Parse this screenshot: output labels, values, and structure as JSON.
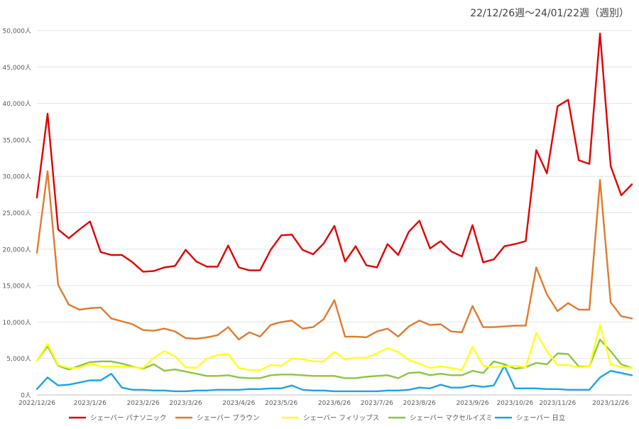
{
  "chart_data": {
    "type": "line",
    "title": "22/12/26週〜24/01/22週（週別）",
    "xlabel": "",
    "ylabel": "",
    "ylim": [
      0,
      50000
    ],
    "yticks": [
      0,
      5000,
      10000,
      15000,
      20000,
      25000,
      30000,
      35000,
      40000,
      45000,
      50000
    ],
    "ytick_labels": [
      "0人",
      "5,000人",
      "10,000人",
      "15,000人",
      "20,000人",
      "25,000人",
      "30,000人",
      "35,000人",
      "40,000人",
      "45,000人",
      "50,000人"
    ],
    "xtick_labels": [
      {
        "index": 0,
        "label": "2022/12/26"
      },
      {
        "index": 5,
        "label": "2023/1/26"
      },
      {
        "index": 10,
        "label": "2023/2/26"
      },
      {
        "index": 14,
        "label": "2023/3/26"
      },
      {
        "index": 19,
        "label": "2023/4/26"
      },
      {
        "index": 23,
        "label": "2023/5/26"
      },
      {
        "index": 28,
        "label": "2023/6/26"
      },
      {
        "index": 32,
        "label": "2023/7/26"
      },
      {
        "index": 36,
        "label": "2023/8/26"
      },
      {
        "index": 41,
        "label": "2023/9/26"
      },
      {
        "index": 45,
        "label": "2023/10/26"
      },
      {
        "index": 49,
        "label": "2023/11/26"
      },
      {
        "index": 54,
        "label": "2023/12/26"
      }
    ],
    "grid": true,
    "legend_position": "bottom",
    "series": [
      {
        "name": "シェーバー パナソニック",
        "color": "#e00000",
        "values": [
          27100,
          38600,
          22700,
          21500,
          22700,
          23800,
          19600,
          19200,
          19200,
          18200,
          16900,
          17000,
          17500,
          17700,
          19900,
          18300,
          17600,
          17600,
          20500,
          17500,
          17100,
          17100,
          19900,
          21900,
          22000,
          19900,
          19300,
          20800,
          23200,
          18300,
          20400,
          17800,
          17500,
          20700,
          19200,
          22400,
          23900,
          20100,
          21100,
          19700,
          19000,
          23300,
          18200,
          18600,
          20400,
          20700,
          21100,
          33600,
          30400,
          39600,
          40500,
          32200,
          31700,
          49600,
          31400,
          27400,
          28900
        ]
      },
      {
        "name": "シェーバー ブラウン",
        "color": "#e07a2e",
        "values": [
          19500,
          30700,
          15100,
          12400,
          11700,
          11900,
          12000,
          10500,
          10100,
          9700,
          8900,
          8800,
          9100,
          8700,
          7800,
          7700,
          7900,
          8200,
          9300,
          7600,
          8600,
          8000,
          9600,
          10000,
          10200,
          9100,
          9300,
          10400,
          13000,
          8000,
          8000,
          7900,
          8700,
          9100,
          8000,
          9400,
          10200,
          9600,
          9700,
          8700,
          8600,
          12200,
          9300,
          9300,
          9400,
          9500,
          9500,
          17500,
          13800,
          11500,
          12600,
          11700,
          11700,
          29500,
          12700,
          10800,
          10500
        ]
      },
      {
        "name": "シェーバー フィリップス",
        "color": "#ffff1a",
        "values": [
          4700,
          7000,
          4100,
          3700,
          3700,
          4300,
          3900,
          3900,
          3900,
          3800,
          3700,
          5100,
          6000,
          5300,
          3800,
          3700,
          5000,
          5500,
          5600,
          3700,
          3400,
          3400,
          4100,
          4000,
          5000,
          4900,
          4600,
          4600,
          5900,
          4900,
          5100,
          5100,
          5700,
          6400,
          5900,
          4800,
          4300,
          3700,
          3900,
          3700,
          3400,
          6600,
          4000,
          3800,
          3900,
          4000,
          3800,
          8500,
          6000,
          4100,
          4100,
          3800,
          3900,
          9600,
          4200,
          3800,
          3700
        ]
      },
      {
        "name": "シェーバー マクセルイズミ",
        "color": "#8cc63f",
        "values": [
          4700,
          6700,
          4000,
          3500,
          4000,
          4500,
          4600,
          4600,
          4300,
          3900,
          3600,
          4200,
          3300,
          3500,
          3200,
          2900,
          2600,
          2600,
          2700,
          2400,
          2300,
          2300,
          2700,
          2800,
          2800,
          2700,
          2600,
          2600,
          2600,
          2300,
          2300,
          2500,
          2600,
          2700,
          2300,
          3000,
          3100,
          2700,
          2900,
          2700,
          2700,
          3300,
          3000,
          4600,
          4200,
          3600,
          3800,
          4400,
          4200,
          5700,
          5600,
          3900,
          3900,
          7600,
          6000,
          4200,
          3700
        ]
      },
      {
        "name": "シェーバー 日立",
        "color": "#1aa3e8",
        "values": [
          800,
          2400,
          1300,
          1400,
          1700,
          2000,
          2000,
          2900,
          1000,
          700,
          700,
          600,
          600,
          500,
          500,
          600,
          600,
          700,
          700,
          700,
          800,
          800,
          900,
          900,
          1300,
          700,
          600,
          600,
          500,
          500,
          500,
          500,
          500,
          600,
          600,
          700,
          1000,
          900,
          1400,
          1000,
          1000,
          1300,
          1100,
          1300,
          4000,
          900,
          900,
          900,
          800,
          800,
          700,
          700,
          700,
          2400,
          3300,
          3000,
          2700
        ]
      }
    ]
  }
}
